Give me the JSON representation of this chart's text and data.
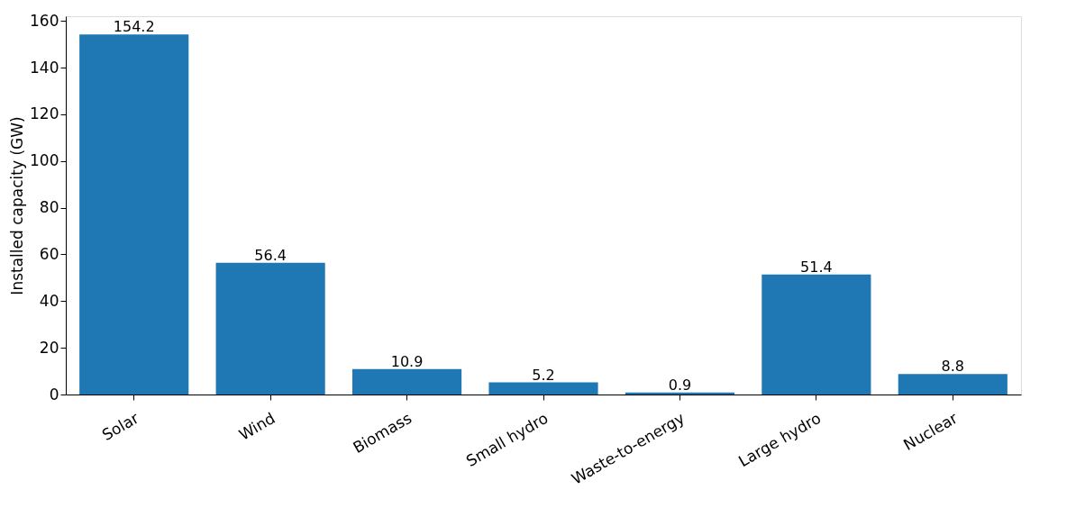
{
  "chart_data": {
    "type": "bar",
    "ylabel": "Installed capacity (GW)",
    "categories": [
      "Solar",
      "Wind",
      "Biomass",
      "Small hydro",
      "Waste-to-energy",
      "Large hydro",
      "Nuclear"
    ],
    "values": [
      154.2,
      56.4,
      10.9,
      5.2,
      0.9,
      51.4,
      8.8
    ],
    "color": "#1f77b4",
    "ylim": [
      0,
      162
    ],
    "yticks": [
      0,
      20,
      40,
      60,
      80,
      100,
      120,
      140,
      160
    ],
    "grid": false,
    "data_labels": true
  }
}
